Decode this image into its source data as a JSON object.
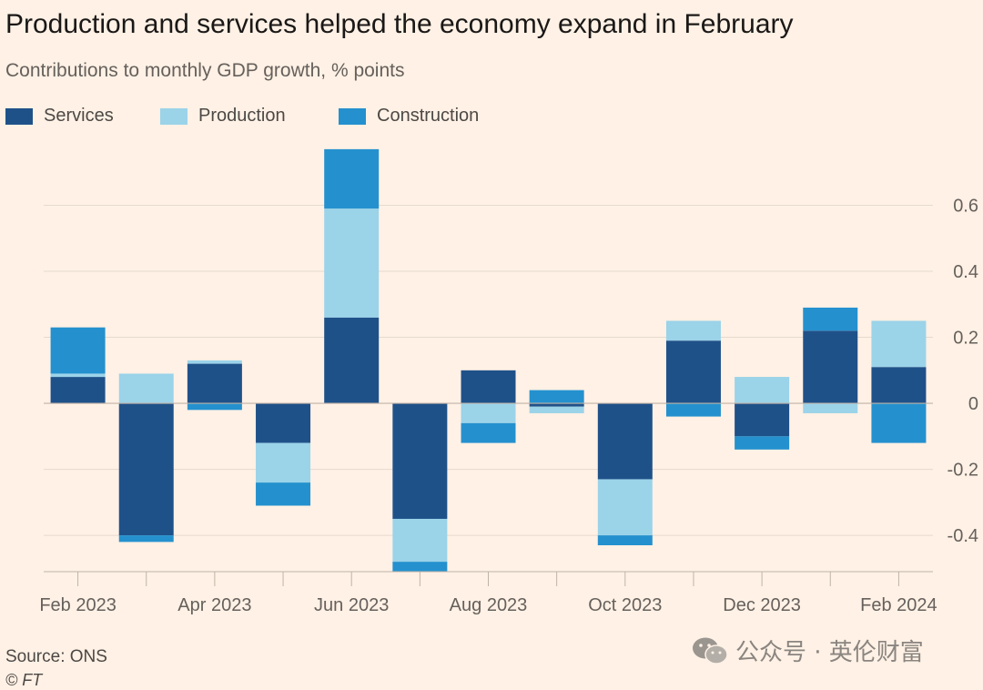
{
  "title": "Production and services helped the economy expand in February",
  "subtitle": "Contributions to monthly GDP growth, % points",
  "legend": [
    {
      "name": "Services",
      "color": "#1F5189"
    },
    {
      "name": "Production",
      "color": "#9BD3E9"
    },
    {
      "name": "Construction",
      "color": "#2491CE"
    }
  ],
  "source": "Source: ONS",
  "copyright": "© FT",
  "watermark": "公众号 · 英伦财富",
  "watermark_icon": "wechat-icon",
  "colors": {
    "background": "#FFF1E5",
    "grid": "#E6D9CE",
    "zero_line": "#BFB3A8",
    "axis_text": "#66605C"
  },
  "chart_data": {
    "type": "bar",
    "stacked": true,
    "title": "Production and services helped the economy expand in February",
    "subtitle": "Contributions to monthly GDP growth, % points",
    "categories": [
      "Feb 2023",
      "Mar 2023",
      "Apr 2023",
      "May 2023",
      "Jun 2023",
      "Jul 2023",
      "Aug 2023",
      "Sep 2023",
      "Oct 2023",
      "Nov 2023",
      "Dec 2023",
      "Jan 2024",
      "Feb 2024"
    ],
    "x_tick_labels": [
      "Feb 2023",
      "Apr 2023",
      "Jun 2023",
      "Aug 2023",
      "Oct 2023",
      "Dec 2023",
      "Feb 2024"
    ],
    "series": [
      {
        "name": "Services",
        "color": "#1F5189",
        "values": [
          0.08,
          -0.4,
          0.12,
          -0.12,
          0.26,
          -0.35,
          0.1,
          -0.01,
          -0.23,
          0.19,
          -0.1,
          0.22,
          0.11
        ]
      },
      {
        "name": "Production",
        "color": "#9BD3E9",
        "values": [
          0.01,
          0.09,
          0.01,
          -0.12,
          0.33,
          -0.13,
          -0.06,
          -0.02,
          -0.17,
          0.06,
          0.08,
          -0.03,
          0.14
        ]
      },
      {
        "name": "Construction",
        "color": "#2491CE",
        "values": [
          0.14,
          -0.02,
          -0.02,
          -0.07,
          0.18,
          -0.03,
          -0.06,
          0.04,
          -0.03,
          -0.04,
          -0.04,
          0.07,
          -0.12
        ]
      }
    ],
    "ylim": [
      -0.51,
      0.8
    ],
    "yticks": [
      0.6,
      0.4,
      0.2,
      0,
      -0.2,
      -0.4
    ],
    "ytick_labels": [
      "0.6",
      "0.4",
      "0.2",
      "0",
      "-0.2",
      "-0.4"
    ],
    "xlabel": "",
    "ylabel": "",
    "grid": true,
    "yaxis_side": "right",
    "legend_position": "top-left"
  }
}
